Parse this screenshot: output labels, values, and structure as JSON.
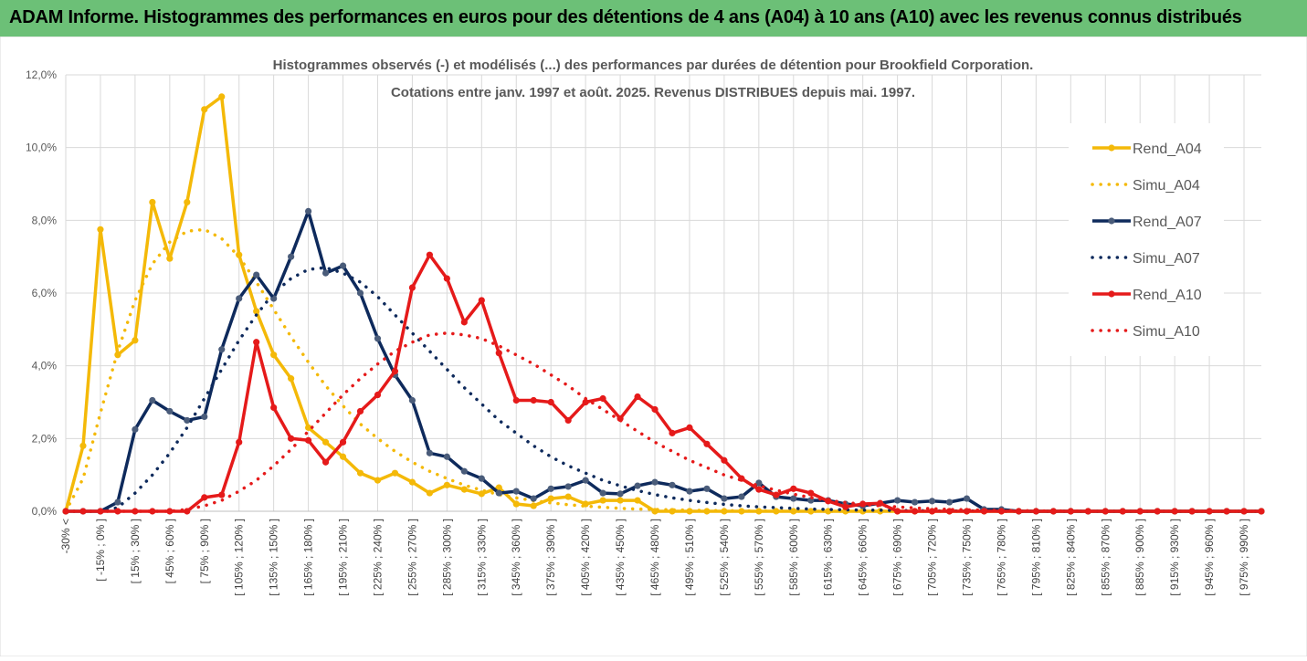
{
  "header": {
    "title": "ADAM Informe. Histogrammes des performances en euros pour des détentions de 4 ans (A04) à 10 ans (A10) avec les revenus connus distribués"
  },
  "chart_data": {
    "type": "line",
    "title": "Histogrammes observés (-) et modélisés (...) des performances par durées de détention pour Brookfield Corporation.",
    "subtitle": "Cotations entre janv. 1997 et août. 2025. Revenus DISTRIBUES depuis mai. 1997.",
    "xlabel": "",
    "ylabel": "",
    "ylim": [
      0,
      12
    ],
    "y_ticks": [
      "0,0%",
      "2,0%",
      "4,0%",
      "6,0%",
      "8,0%",
      "10,0%",
      "12,0%"
    ],
    "x_tick_labels": [
      "-30% <",
      "[ -15% ; 0% ]",
      "[ 15% ; 30% ]",
      "[ 45% ; 60% ]",
      "[ 75% ; 90% ]",
      "[ 105% ; 120% ]",
      "[ 135% ; 150% ]",
      "[ 165% ; 180% ]",
      "[ 195% ; 210% ]",
      "[ 225% ; 240% ]",
      "[ 255% ; 270% ]",
      "[ 285% ; 300% ]",
      "[ 315% ; 330% ]",
      "[ 345% ; 360% ]",
      "[ 375% ; 390% ]",
      "[ 405% ; 420% ]",
      "[ 435% ; 450% ]",
      "[ 465% ; 480% ]",
      "[ 495% ; 510% ]",
      "[ 525% ; 540% ]",
      "[ 555% ; 570% ]",
      "[ 585% ; 600% ]",
      "[ 615% ; 630% ]",
      "[ 645% ; 660% ]",
      "[ 675% ; 690% ]",
      "[ 705% ; 720% ]",
      "[ 735% ; 750% ]",
      "[ 765% ; 780% ]",
      "[ 795% ; 810% ]",
      "[ 825% ; 840% ]",
      "[ 855% ; 870% ]",
      "[ 885% ; 900% ]",
      "[ 915% ; 930% ]",
      "[ 945% ; 960% ]",
      "[ 975% ; 990% ]"
    ],
    "legend_position": "right",
    "grid": true,
    "series": [
      {
        "name": "Rend_A04",
        "style": "solid",
        "markers": true,
        "color": "#f4b908",
        "values": [
          0,
          1.8,
          7.75,
          4.3,
          4.7,
          8.5,
          6.95,
          8.5,
          11.05,
          11.4,
          7.05,
          5.5,
          4.3,
          3.65,
          2.3,
          1.9,
          1.5,
          1.05,
          0.85,
          1.05,
          0.8,
          0.5,
          0.72,
          0.6,
          0.48,
          0.65,
          0.2,
          0.15,
          0.35,
          0.4,
          0.2,
          0.3,
          0.3,
          0.3,
          0.0,
          0.0,
          0.0,
          0.0,
          0.0,
          0.0,
          0.0,
          0.0,
          0.0,
          0.0,
          0.0,
          0.0,
          0.0,
          0.0,
          0.0,
          0.0,
          0.0,
          0.0,
          0.0,
          0.0,
          0.0,
          0.0,
          0.0,
          0.0,
          0.0,
          0.0,
          0.0,
          0.0,
          0.0,
          0.0,
          0.0,
          0.0,
          0.0,
          0.0,
          0.0,
          0.0
        ]
      },
      {
        "name": "Simu_A04",
        "style": "dotted",
        "markers": false,
        "color": "#f4b908",
        "values": [
          0.0,
          0.9,
          2.7,
          4.4,
          5.8,
          6.8,
          7.4,
          7.7,
          7.75,
          7.5,
          7.0,
          6.3,
          5.55,
          4.8,
          4.1,
          3.45,
          2.9,
          2.4,
          2.0,
          1.65,
          1.35,
          1.1,
          0.9,
          0.72,
          0.58,
          0.46,
          0.37,
          0.29,
          0.23,
          0.18,
          0.14,
          0.11,
          0.08,
          0.06,
          0.05,
          0.04,
          0.03,
          0.02,
          0.02,
          0.01,
          0.01,
          0.01,
          0.0,
          0.0,
          0.0,
          0.0,
          0.0,
          0.0,
          0.0,
          0.0,
          0.0,
          0.0,
          0.0,
          0.0,
          0.0,
          0.0,
          0.0,
          0.0,
          0.0,
          0.0,
          0.0,
          0.0,
          0.0,
          0.0,
          0.0,
          0.0,
          0.0,
          0.0,
          0.0,
          0.0
        ]
      },
      {
        "name": "Rend_A07",
        "style": "solid",
        "markers": true,
        "color": "#0e2a5c",
        "values": [
          0,
          0,
          0,
          0.25,
          2.25,
          3.05,
          2.75,
          2.5,
          2.6,
          4.45,
          5.85,
          6.5,
          5.85,
          7.0,
          8.25,
          6.55,
          6.75,
          6.0,
          4.75,
          3.75,
          3.05,
          1.6,
          1.5,
          1.1,
          0.9,
          0.5,
          0.55,
          0.35,
          0.62,
          0.68,
          0.85,
          0.5,
          0.48,
          0.7,
          0.8,
          0.72,
          0.55,
          0.62,
          0.35,
          0.4,
          0.78,
          0.4,
          0.35,
          0.3,
          0.3,
          0.2,
          0.15,
          0.22,
          0.3,
          0.25,
          0.28,
          0.25,
          0.35,
          0.05,
          0.05,
          0.0,
          0.0,
          0.0,
          0.0,
          0.0,
          0.0,
          0.0,
          0.0,
          0.0,
          0.0,
          0.0,
          0.0,
          0.0,
          0.0,
          0.0
        ]
      },
      {
        "name": "Simu_A07",
        "style": "dotted",
        "markers": false,
        "color": "#0e2a5c",
        "values": [
          0.0,
          0.0,
          0.0,
          0.1,
          0.5,
          1.0,
          1.6,
          2.3,
          3.1,
          3.9,
          4.7,
          5.4,
          6.0,
          6.4,
          6.65,
          6.7,
          6.55,
          6.3,
          5.9,
          5.4,
          4.9,
          4.4,
          3.9,
          3.4,
          2.95,
          2.5,
          2.15,
          1.8,
          1.5,
          1.25,
          1.05,
          0.85,
          0.7,
          0.57,
          0.46,
          0.37,
          0.3,
          0.24,
          0.19,
          0.15,
          0.12,
          0.1,
          0.08,
          0.06,
          0.05,
          0.04,
          0.03,
          0.03,
          0.02,
          0.02,
          0.01,
          0.01,
          0.01,
          0.01,
          0.0,
          0.0,
          0.0,
          0.0,
          0.0,
          0.0,
          0.0,
          0.0,
          0.0,
          0.0,
          0.0,
          0.0,
          0.0,
          0.0,
          0.0,
          0.0
        ]
      },
      {
        "name": "Rend_A10",
        "style": "solid",
        "markers": true,
        "color": "#e51a1a",
        "values": [
          0,
          0,
          0,
          0,
          0,
          0,
          0,
          0,
          0.38,
          0.45,
          1.9,
          4.65,
          2.85,
          2.0,
          1.95,
          1.35,
          1.9,
          2.75,
          3.2,
          3.85,
          6.15,
          7.05,
          6.4,
          5.2,
          5.8,
          4.35,
          3.05,
          3.05,
          3.0,
          2.5,
          3.0,
          3.1,
          2.55,
          3.15,
          2.8,
          2.15,
          2.3,
          1.85,
          1.4,
          0.9,
          0.6,
          0.45,
          0.62,
          0.5,
          0.28,
          0.12,
          0.2,
          0.22,
          0.0,
          0.0,
          0.0,
          0.0,
          0.0,
          0.0,
          0.0,
          0.0,
          0.0,
          0.0,
          0.0,
          0.0,
          0.0,
          0.0,
          0.0,
          0.0,
          0.0,
          0.0,
          0.0,
          0.0,
          0.0,
          0.0
        ]
      },
      {
        "name": "Simu_A10",
        "style": "dotted",
        "markers": false,
        "color": "#e51a1a",
        "values": [
          0.0,
          0.0,
          0.0,
          0.0,
          0.0,
          0.0,
          0.0,
          0.05,
          0.15,
          0.3,
          0.55,
          0.85,
          1.25,
          1.7,
          2.2,
          2.7,
          3.2,
          3.65,
          4.05,
          4.4,
          4.65,
          4.85,
          4.9,
          4.85,
          4.75,
          4.55,
          4.3,
          4.05,
          3.75,
          3.45,
          3.1,
          2.8,
          2.5,
          2.2,
          1.9,
          1.65,
          1.4,
          1.2,
          1.0,
          0.85,
          0.7,
          0.58,
          0.47,
          0.38,
          0.3,
          0.24,
          0.19,
          0.15,
          0.12,
          0.09,
          0.07,
          0.05,
          0.04,
          0.03,
          0.02,
          0.02,
          0.01,
          0.01,
          0.01,
          0.0,
          0.0,
          0.0,
          0.0,
          0.0,
          0.0,
          0.0,
          0.0,
          0.0,
          0.0,
          0.0
        ]
      }
    ]
  }
}
